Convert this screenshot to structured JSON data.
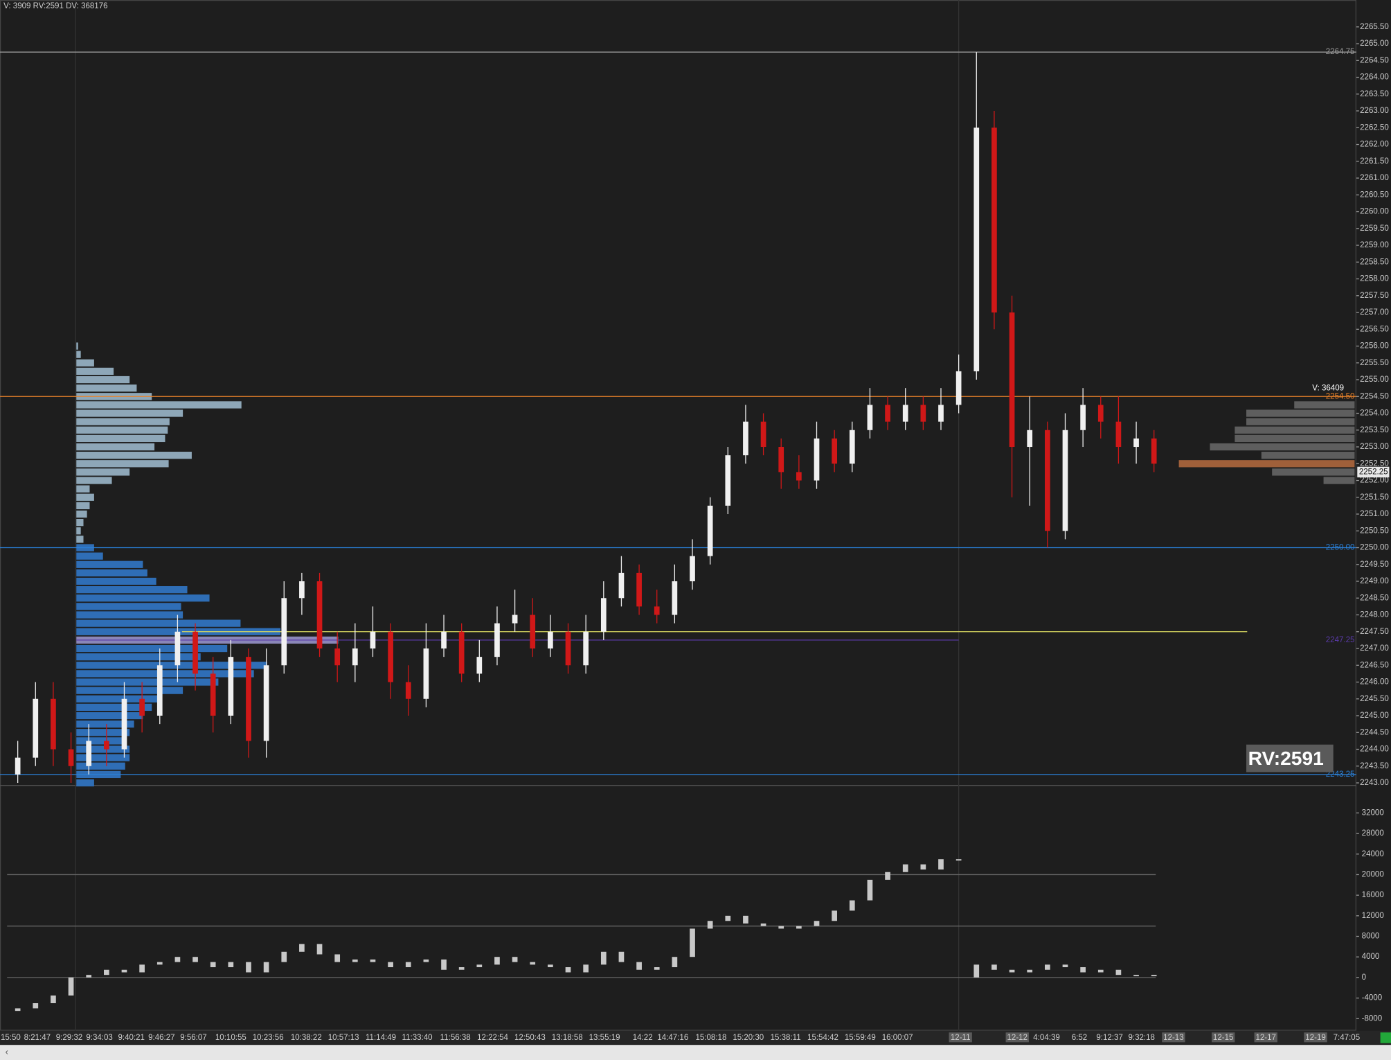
{
  "header": "V: 3909 RV:2591 DV: 368176",
  "chart_data": [
    {
      "type": "candlestick",
      "ylim": [
        2242.95,
        2266.3
      ],
      "yticks": [
        {
          "value": 2243,
          "label": "2243.00"
        },
        {
          "value": 2243.5,
          "label": "2243.50"
        },
        {
          "value": 2244,
          "label": "2244.00"
        },
        {
          "value": 2244.5,
          "label": "2244.50"
        },
        {
          "value": 2245,
          "label": "2245.00"
        },
        {
          "value": 2245.5,
          "label": "2245.50"
        },
        {
          "value": 2246,
          "label": "2246.00"
        },
        {
          "value": 2246.5,
          "label": "2246.50"
        },
        {
          "value": 2247,
          "label": "2247.00"
        },
        {
          "value": 2247.5,
          "label": "2247.50"
        },
        {
          "value": 2248,
          "label": "2248.00"
        },
        {
          "value": 2248.5,
          "label": "2248.50"
        },
        {
          "value": 2249,
          "label": "2249.00"
        },
        {
          "value": 2249.5,
          "label": "2249.50"
        },
        {
          "value": 2250,
          "label": "2250.00"
        },
        {
          "value": 2250.5,
          "label": "2250.50"
        },
        {
          "value": 2251,
          "label": "2251.00"
        },
        {
          "value": 2251.5,
          "label": "2251.50"
        },
        {
          "value": 2252,
          "label": "2252.00"
        },
        {
          "value": 2252.5,
          "label": "2252.50"
        },
        {
          "value": 2253,
          "label": "2253.00"
        },
        {
          "value": 2253.5,
          "label": "2253.50"
        },
        {
          "value": 2254,
          "label": "2254.00"
        },
        {
          "value": 2254.5,
          "label": "2254.50"
        },
        {
          "value": 2255,
          "label": "2255.00"
        },
        {
          "value": 2255.5,
          "label": "2255.50"
        },
        {
          "value": 2256,
          "label": "2256.00"
        },
        {
          "value": 2256.5,
          "label": "2256.50"
        },
        {
          "value": 2257,
          "label": "2257.00"
        },
        {
          "value": 2257.5,
          "label": "2257.50"
        },
        {
          "value": 2258,
          "label": "2258.00"
        },
        {
          "value": 2258.5,
          "label": "2258.50"
        },
        {
          "value": 2259,
          "label": "2259.00"
        },
        {
          "value": 2259.5,
          "label": "2259.50"
        },
        {
          "value": 2260,
          "label": "2260.00"
        },
        {
          "value": 2260.5,
          "label": "2260.50"
        },
        {
          "value": 2261,
          "label": "2261.00"
        },
        {
          "value": 2261.5,
          "label": "2261.50"
        },
        {
          "value": 2262,
          "label": "2262.00"
        },
        {
          "value": 2262.5,
          "label": "2262.50"
        },
        {
          "value": 2263,
          "label": "2263.00"
        },
        {
          "value": 2263.5,
          "label": "2263.50"
        },
        {
          "value": 2264,
          "label": "2264.00"
        },
        {
          "value": 2264.5,
          "label": "2264.50"
        },
        {
          "value": 2265,
          "label": "2265.00"
        },
        {
          "value": 2265.5,
          "label": "2265.50"
        }
      ],
      "up_color": "#f0f0f0",
      "down_color": "#d01818",
      "open": [
        2243.25,
        2243.75,
        2245.5,
        2244.0,
        2243.5,
        2244.25,
        2244.0,
        2245.5,
        2245.0,
        2246.5,
        2247.5,
        2246.25,
        2245.0,
        2246.75,
        2244.25,
        2246.5,
        2248.5,
        2249.0,
        2247.0,
        2246.5,
        2247.0,
        2247.5,
        2246.0,
        2245.5,
        2247.0,
        2247.5,
        2246.25,
        2246.75,
        2247.75,
        2248.0,
        2247.0,
        2247.5,
        2246.5,
        2247.5,
        2248.5,
        2249.25,
        2248.25,
        2248.0,
        2249.0,
        2249.75,
        2251.25,
        2252.75,
        2253.75,
        2253.0,
        2252.25,
        2252.0,
        2253.25,
        2252.5,
        2253.5,
        2254.25,
        2253.75,
        2254.25,
        2253.75,
        2254.25,
        2255.25,
        2262.5,
        2257.0,
        2253.0,
        2253.5,
        2250.5,
        2253.5,
        2254.25,
        2253.75,
        2253.0,
        2253.25
      ],
      "high": [
        2244.25,
        2246.0,
        2246.0,
        2244.5,
        2244.75,
        2244.75,
        2246.0,
        2246.0,
        2247.0,
        2248.0,
        2247.75,
        2246.75,
        2247.25,
        2247.0,
        2247.0,
        2249.0,
        2249.25,
        2249.25,
        2247.5,
        2247.75,
        2248.25,
        2247.75,
        2246.5,
        2247.75,
        2248.0,
        2247.75,
        2247.25,
        2248.25,
        2248.75,
        2248.5,
        2248.0,
        2247.75,
        2248.0,
        2249.0,
        2249.75,
        2249.5,
        2248.75,
        2249.5,
        2250.25,
        2251.5,
        2253.0,
        2254.25,
        2254.0,
        2253.25,
        2252.75,
        2253.75,
        2253.5,
        2253.75,
        2254.75,
        2254.5,
        2254.75,
        2254.5,
        2254.75,
        2255.75,
        2264.75,
        2263.0,
        2257.5,
        2254.5,
        2253.75,
        2254.0,
        2254.75,
        2254.5,
        2254.5,
        2253.75,
        2253.5
      ],
      "low": [
        2243.0,
        2243.5,
        2243.5,
        2243.0,
        2243.25,
        2243.5,
        2243.75,
        2244.5,
        2244.75,
        2246.0,
        2245.75,
        2244.5,
        2244.75,
        2243.75,
        2243.75,
        2246.25,
        2248.0,
        2246.75,
        2246.0,
        2246.0,
        2246.75,
        2245.5,
        2245.0,
        2245.25,
        2246.75,
        2246.0,
        2246.0,
        2246.5,
        2247.5,
        2246.75,
        2246.75,
        2246.25,
        2246.25,
        2247.25,
        2248.25,
        2248.0,
        2247.75,
        2247.75,
        2248.75,
        2249.5,
        2251.0,
        2252.5,
        2252.75,
        2251.75,
        2251.75,
        2251.75,
        2252.25,
        2252.25,
        2253.25,
        2253.5,
        2253.5,
        2253.5,
        2253.5,
        2254.0,
        2255.0,
        2256.5,
        2251.5,
        2251.25,
        2250.0,
        2250.25,
        2253.0,
        2253.25,
        2252.5,
        2252.5,
        2252.25
      ],
      "close": [
        2243.75,
        2245.5,
        2244.0,
        2243.5,
        2244.25,
        2244.0,
        2245.5,
        2245.0,
        2246.5,
        2247.5,
        2246.25,
        2245.0,
        2246.75,
        2244.25,
        2246.5,
        2248.5,
        2249.0,
        2247.0,
        2246.5,
        2247.0,
        2247.5,
        2246.0,
        2245.5,
        2247.0,
        2247.5,
        2246.25,
        2246.75,
        2247.75,
        2248.0,
        2247.0,
        2247.5,
        2246.5,
        2247.5,
        2248.5,
        2249.25,
        2248.25,
        2248.0,
        2249.0,
        2249.75,
        2251.25,
        2252.75,
        2253.75,
        2253.0,
        2252.25,
        2252.0,
        2253.25,
        2252.5,
        2253.5,
        2254.25,
        2253.75,
        2254.25,
        2253.75,
        2254.25,
        2255.25,
        2262.5,
        2257.0,
        2253.0,
        2253.5,
        2250.5,
        2253.5,
        2254.25,
        2253.75,
        2253.0,
        2253.25,
        2252.5
      ],
      "levels": [
        {
          "value": 2264.75,
          "label": "2264.75",
          "color": "#9a9a9a"
        },
        {
          "value": 2254.5,
          "label": "2254.50",
          "color": "#e8822a"
        },
        {
          "value": 2250,
          "label": "2250.00",
          "color": "#2a80d8"
        },
        {
          "value": 2247.25,
          "label": "2247.25",
          "color": "#5a3aa8"
        },
        {
          "value": 2243.25,
          "label": "2243.25",
          "color": "#2a80d8"
        },
        {
          "value": 2247.5,
          "color": "#d8d860"
        }
      ],
      "current_price": {
        "value": 2252.25,
        "label": "2252.25"
      },
      "volume_label": "V: 36409",
      "rv_box": "RV:2591",
      "volume_profile": {
        "upper_color": "#8ea7b8",
        "lower_color": "#2f6eb6",
        "highlight_color": "#8a86b8",
        "highlight_price": 2247.25,
        "prices": [
          2256.0,
          2255.75,
          2255.5,
          2255.25,
          2255.0,
          2254.75,
          2254.5,
          2254.25,
          2254.0,
          2253.75,
          2253.5,
          2253.25,
          2253.0,
          2252.75,
          2252.5,
          2252.25,
          2252.0,
          2251.75,
          2251.5,
          2251.25,
          2251.0,
          2250.75,
          2250.5,
          2250.25,
          2250.0,
          2249.75,
          2249.5,
          2249.25,
          2249.0,
          2248.75,
          2248.5,
          2248.25,
          2248.0,
          2247.75,
          2247.5,
          2247.25,
          2247.0,
          2246.75,
          2246.5,
          2246.25,
          2246.0,
          2245.75,
          2245.5,
          2245.25,
          2245.0,
          2244.75,
          2244.5,
          2244.25,
          2244.0,
          2243.75,
          2243.5,
          2243.25,
          2243.0
        ],
        "values": [
          2,
          5,
          20,
          42,
          60,
          68,
          85,
          186,
          120,
          105,
          103,
          100,
          88,
          130,
          104,
          60,
          40,
          15,
          20,
          15,
          12,
          8,
          5,
          8,
          20,
          30,
          75,
          80,
          90,
          125,
          150,
          118,
          120,
          185,
          230,
          295,
          170,
          140,
          215,
          200,
          160,
          120,
          95,
          85,
          75,
          65,
          60,
          55,
          60,
          60,
          55,
          50,
          20
        ]
      },
      "session_profile": {
        "color": "#5e5e5e",
        "highlight_color": "#a0603a",
        "highlight_price": 2252.5,
        "prices": [
          2254.25,
          2254.0,
          2253.75,
          2253.5,
          2253.25,
          2253.0,
          2252.75,
          2252.5,
          2252.25,
          2252.0
        ],
        "values": [
          68,
          122,
          122,
          135,
          135,
          163,
          105,
          198,
          93,
          35
        ]
      },
      "x_labels": [
        "15:50",
        "8:21:47",
        "9:29:32",
        "9:34:03",
        "9:40:21",
        "9:46:27",
        "9:56:07",
        "10:10:55",
        "10:23:56",
        "10:38:22",
        "10:57:13",
        "11:14:49",
        "11:33:40",
        "11:56:38",
        "12:22:54",
        "12:50:43",
        "13:18:58",
        "13:55:19",
        "14:22",
        "14:47:16",
        "15:08:18",
        "15:20:30",
        "15:38:11",
        "15:54:42",
        "15:59:49",
        "16:00:07",
        "12-11",
        "12-12",
        "4:04:39",
        "6:52",
        "9:12:37",
        "9:32:18",
        "12-13",
        "12-15",
        "12-17",
        "12-19",
        "7:47:05"
      ]
    },
    {
      "type": "delta",
      "ylim": [
        -10000,
        37000
      ],
      "yticks": [
        -8000,
        -4000,
        0,
        4000,
        8000,
        12000,
        16000,
        20000,
        24000,
        28000,
        32000
      ],
      "grid_levels": [
        0,
        10000,
        20000
      ],
      "color": "#c8c8c8",
      "open": [
        -6500,
        -6000,
        -5000,
        -3500,
        0,
        500,
        1500,
        1000,
        2500,
        3000,
        4000,
        3000,
        2000,
        3000,
        1000,
        3000,
        5000,
        6500,
        4500,
        3000,
        3500,
        3000,
        2000,
        3000,
        3500,
        1500,
        2000,
        2500,
        4000,
        3000,
        2500,
        2000,
        1000,
        2500,
        5000,
        3000,
        1500,
        2000,
        4000,
        9500,
        11000,
        12000,
        10500,
        10000,
        9500,
        10000,
        11000,
        13000,
        15000,
        19000,
        20500,
        22000,
        21000,
        23000,
        0,
        2500,
        1500,
        1000,
        1500,
        2500,
        2000,
        1000,
        1500,
        500,
        500
      ],
      "close": [
        -6000,
        -5000,
        -3500,
        0,
        500,
        1500,
        1000,
        2500,
        3000,
        4000,
        3000,
        2000,
        3000,
        1000,
        3000,
        5000,
        6500,
        4500,
        3000,
        3500,
        3000,
        2000,
        3000,
        3500,
        1500,
        2000,
        2500,
        4000,
        3000,
        2500,
        2000,
        1000,
        2500,
        5000,
        3000,
        1500,
        2000,
        4000,
        9500,
        11000,
        12000,
        10500,
        10000,
        9500,
        10000,
        11000,
        13000,
        15000,
        19000,
        20500,
        22000,
        21000,
        23000,
        23000,
        2500,
        1500,
        1000,
        1500,
        2500,
        2000,
        1000,
        1500,
        500,
        500,
        500
      ]
    }
  ]
}
